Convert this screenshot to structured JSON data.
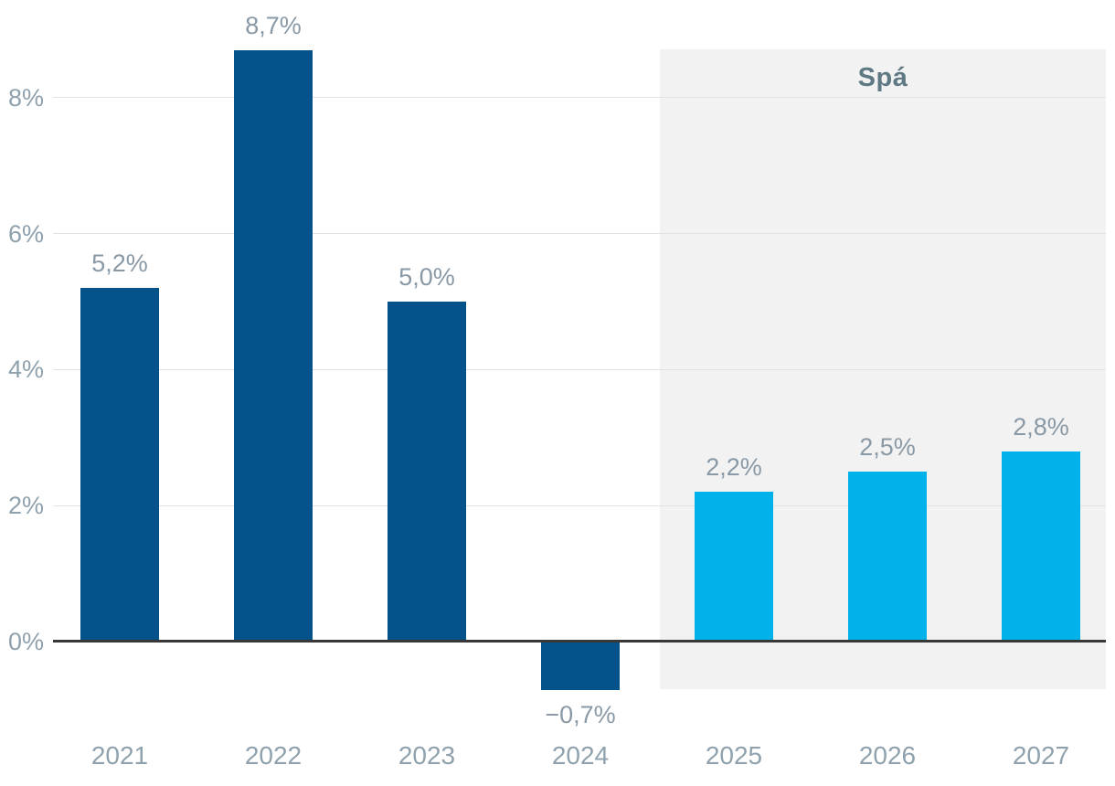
{
  "chart_data": {
    "type": "bar",
    "title": "",
    "xlabel": "",
    "ylabel": "",
    "categories": [
      "2021",
      "2022",
      "2023",
      "2024",
      "2025",
      "2026",
      "2027"
    ],
    "values": [
      5.2,
      8.7,
      5.0,
      -0.7,
      2.2,
      2.5,
      2.8
    ],
    "value_labels": [
      "5,2%",
      "8,7%",
      "5,0%",
      "−0,7%",
      "2,2%",
      "2,5%",
      "2,8%"
    ],
    "series": [
      {
        "name": "actual",
        "categories": [
          "2021",
          "2022",
          "2023",
          "2024"
        ],
        "values": [
          5.2,
          8.7,
          5.0,
          -0.7
        ]
      },
      {
        "name": "forecast",
        "categories": [
          "2025",
          "2026",
          "2027"
        ],
        "values": [
          2.2,
          2.5,
          2.8
        ]
      }
    ],
    "forecast_label": "Spá",
    "forecast_start_category": "2025",
    "y_ticks": [
      {
        "value": 0,
        "label": "0%"
      },
      {
        "value": 2,
        "label": "2%"
      },
      {
        "value": 4,
        "label": "4%"
      },
      {
        "value": 6,
        "label": "6%"
      },
      {
        "value": 8,
        "label": "8%"
      }
    ],
    "ylim": [
      -0.7,
      8.71
    ],
    "grid": true,
    "legend": "none",
    "colors": {
      "actual_bar": "#04528a",
      "forecast_bar": "#00b2e9",
      "forecast_region_bg": "#f2f2f2",
      "gridline": "#e2e2e2",
      "zero_line": "#383838",
      "tick_label": "#8fa1ad",
      "year_label": "#8fa1ad",
      "value_label": "#8a99a6",
      "forecast_label": "#5e7983"
    }
  }
}
